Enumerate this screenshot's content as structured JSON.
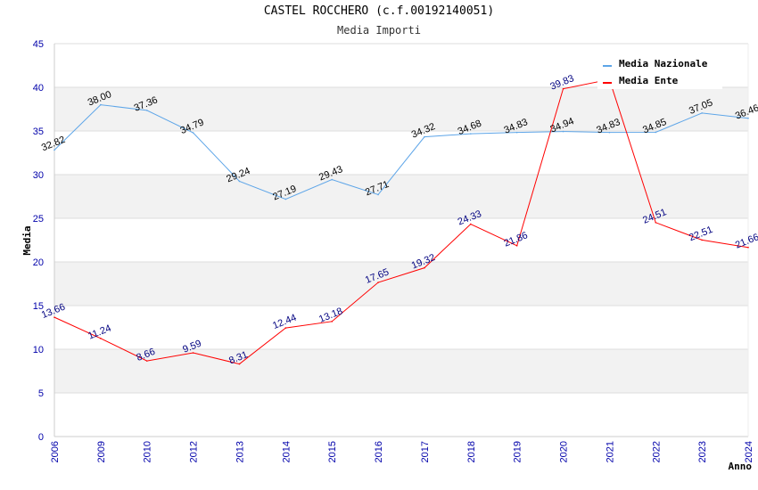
{
  "chart_data": {
    "type": "line",
    "title": "CASTEL ROCCHERO (c.f.00192140051)",
    "subtitle": "Media Importi",
    "xlabel": "Anno",
    "ylabel": "Media",
    "ylim": [
      0,
      45
    ],
    "yticks": [
      "0",
      "5",
      "10",
      "15",
      "20",
      "25",
      "30",
      "35",
      "40",
      "45"
    ],
    "categories": [
      "2006",
      "2009",
      "2010",
      "2012",
      "2013",
      "2014",
      "2015",
      "2016",
      "2017",
      "2018",
      "2019",
      "2020",
      "2021",
      "2022",
      "2023",
      "2024"
    ],
    "series": [
      {
        "name": "Media Nazionale",
        "color": "#5da5e8",
        "values": [
          32.82,
          38.0,
          37.36,
          34.79,
          29.24,
          27.19,
          29.43,
          27.71,
          34.32,
          34.68,
          34.83,
          34.94,
          34.83,
          34.85,
          37.05,
          36.46
        ],
        "labels": [
          "32.82",
          "38.00",
          "37.36",
          "34.79",
          "29.24",
          "27.19",
          "29.43",
          "27.71",
          "34.32",
          "34.68",
          "34.83",
          "34.94",
          "34.83",
          "34.85",
          "37.05",
          "36.46"
        ]
      },
      {
        "name": "Media Ente",
        "color": "#ff0000",
        "values": [
          13.66,
          11.24,
          8.66,
          9.59,
          8.31,
          12.44,
          13.18,
          17.65,
          19.32,
          24.33,
          21.86,
          39.83,
          40.9,
          24.51,
          22.51,
          21.66
        ],
        "labels": [
          "13.66",
          "11.24",
          "8.66",
          "9.59",
          "8.31",
          "12.44",
          "13.18",
          "17.65",
          "19.32",
          "24.33",
          "21.86",
          "39.83",
          "",
          "24.51",
          "22.51",
          "21.66"
        ]
      }
    ],
    "legend": "top-right",
    "grid": true
  }
}
